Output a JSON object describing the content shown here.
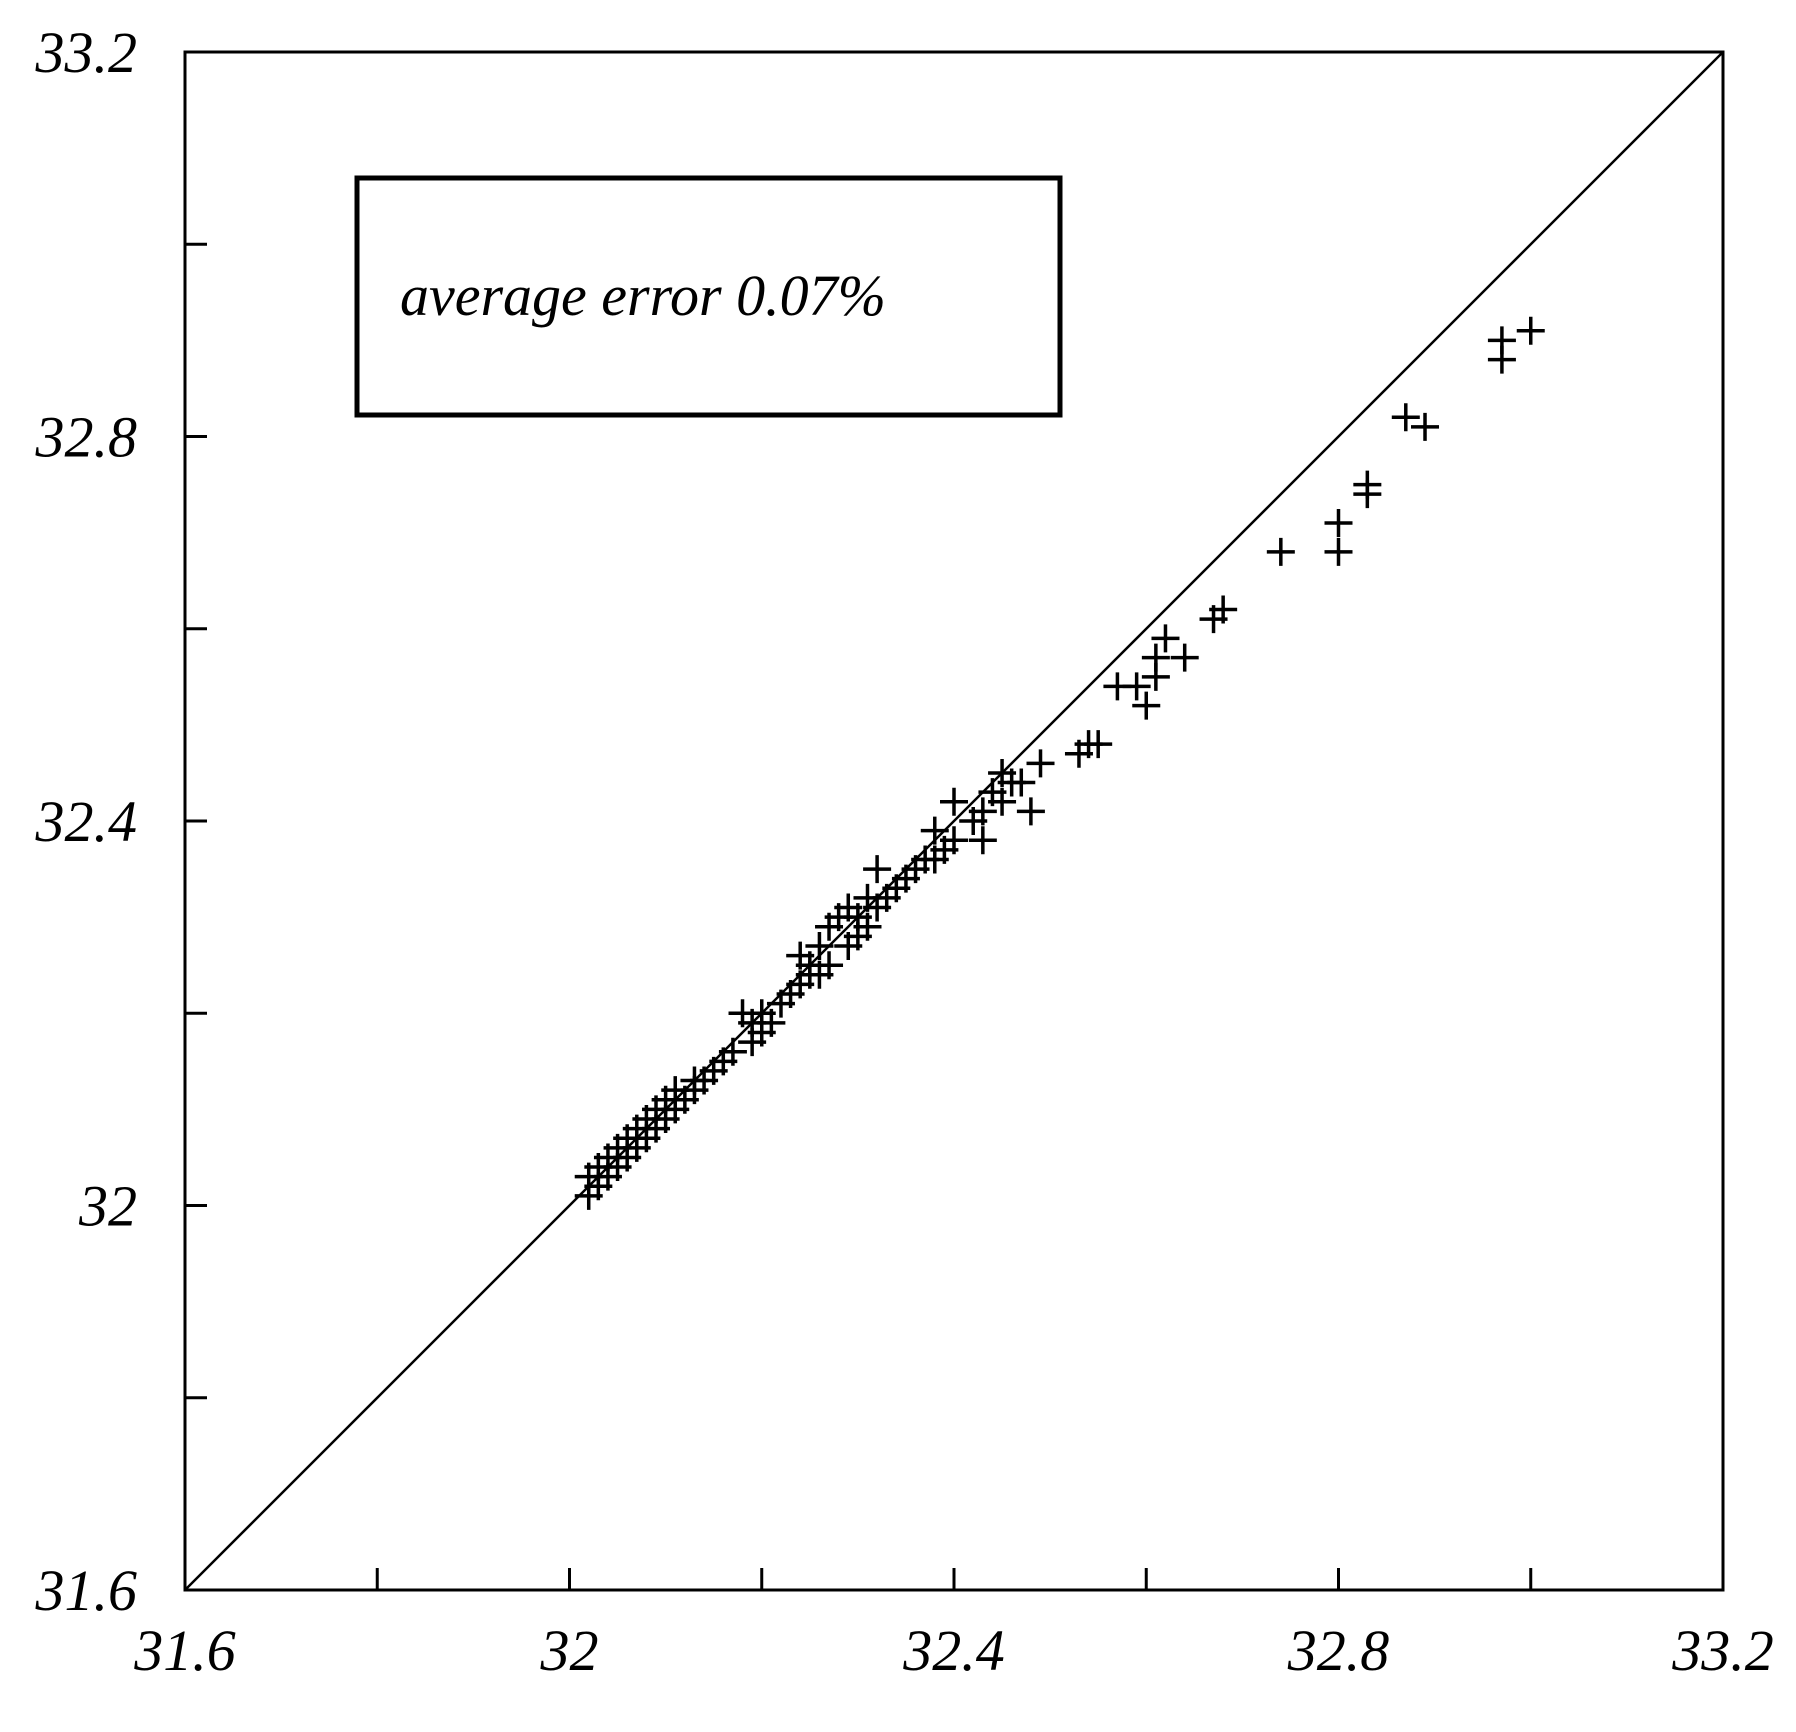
{
  "chart_data": {
    "type": "scatter",
    "title": "",
    "xlabel": "",
    "ylabel": "",
    "xlim": [
      31.6,
      33.2
    ],
    "ylim": [
      31.6,
      33.2
    ],
    "x_ticks": [
      31.6,
      32,
      32.4,
      32.8,
      33.2
    ],
    "x_tick_labels": [
      "31.6",
      "32",
      "32.4",
      "32.8",
      "33.2"
    ],
    "x_minor_ticks": [
      31.8,
      32.2,
      32.6,
      33.0
    ],
    "y_ticks": [
      31.6,
      32,
      32.4,
      32.8,
      33.2
    ],
    "y_tick_labels": [
      "31.6",
      "32",
      "32.4",
      "32.8",
      "33.2"
    ],
    "y_minor_ticks": [
      31.8,
      32.2,
      32.6,
      33.0
    ],
    "grid": false,
    "marker": "plus",
    "reference_line": {
      "type": "y=x",
      "from": [
        31.6,
        31.6
      ],
      "to": [
        33.2,
        33.2
      ]
    },
    "annotation": {
      "text": "average error 0.07%",
      "position": "top-left",
      "boxed": true
    },
    "series": [
      {
        "points": [
          [
            32.02,
            32.01
          ],
          [
            32.02,
            32.03
          ],
          [
            32.03,
            32.02
          ],
          [
            32.03,
            32.04
          ],
          [
            32.04,
            32.03
          ],
          [
            32.04,
            32.05
          ],
          [
            32.05,
            32.04
          ],
          [
            32.05,
            32.06
          ],
          [
            32.06,
            32.05
          ],
          [
            32.06,
            32.07
          ],
          [
            32.07,
            32.06
          ],
          [
            32.07,
            32.08
          ],
          [
            32.08,
            32.07
          ],
          [
            32.08,
            32.09
          ],
          [
            32.09,
            32.08
          ],
          [
            32.09,
            32.1
          ],
          [
            32.1,
            32.09
          ],
          [
            32.1,
            32.11
          ],
          [
            32.11,
            32.1
          ],
          [
            32.11,
            32.12
          ],
          [
            32.12,
            32.11
          ],
          [
            32.13,
            32.12
          ],
          [
            32.13,
            32.13
          ],
          [
            32.14,
            32.13
          ],
          [
            32.15,
            32.14
          ],
          [
            32.16,
            32.15
          ],
          [
            32.17,
            32.16
          ],
          [
            32.18,
            32.2
          ],
          [
            32.19,
            32.17
          ],
          [
            32.19,
            32.19
          ],
          [
            32.2,
            32.18
          ],
          [
            32.2,
            32.2
          ],
          [
            32.21,
            32.19
          ],
          [
            32.22,
            32.21
          ],
          [
            32.23,
            32.22
          ],
          [
            32.24,
            32.23
          ],
          [
            32.24,
            32.26
          ],
          [
            32.25,
            32.24
          ],
          [
            32.25,
            32.25
          ],
          [
            32.26,
            32.24
          ],
          [
            32.26,
            32.27
          ],
          [
            32.27,
            32.25
          ],
          [
            32.27,
            32.29
          ],
          [
            32.28,
            32.3
          ],
          [
            32.29,
            32.27
          ],
          [
            32.29,
            32.31
          ],
          [
            32.3,
            32.28
          ],
          [
            32.3,
            32.3
          ],
          [
            32.31,
            32.29
          ],
          [
            32.31,
            32.32
          ],
          [
            32.32,
            32.31
          ],
          [
            32.32,
            32.35
          ],
          [
            32.33,
            32.32
          ],
          [
            32.34,
            32.33
          ],
          [
            32.35,
            32.34
          ],
          [
            32.36,
            32.35
          ],
          [
            32.37,
            32.36
          ],
          [
            32.38,
            32.36
          ],
          [
            32.38,
            32.39
          ],
          [
            32.39,
            32.37
          ],
          [
            32.4,
            32.38
          ],
          [
            32.4,
            32.42
          ],
          [
            32.42,
            32.4
          ],
          [
            32.43,
            32.38
          ],
          [
            32.43,
            32.41
          ],
          [
            32.44,
            32.43
          ],
          [
            32.45,
            32.42
          ],
          [
            32.45,
            32.45
          ],
          [
            32.46,
            32.44
          ],
          [
            32.47,
            32.44
          ],
          [
            32.48,
            32.41
          ],
          [
            32.49,
            32.46
          ],
          [
            32.53,
            32.47
          ],
          [
            32.54,
            32.48
          ],
          [
            32.55,
            32.48
          ],
          [
            32.57,
            32.54
          ],
          [
            32.59,
            32.54
          ],
          [
            32.6,
            32.52
          ],
          [
            32.61,
            32.55
          ],
          [
            32.61,
            32.57
          ],
          [
            32.62,
            32.59
          ],
          [
            32.64,
            32.57
          ],
          [
            32.67,
            32.61
          ],
          [
            32.68,
            32.62
          ],
          [
            32.74,
            32.68
          ],
          [
            32.8,
            32.68
          ],
          [
            32.8,
            32.71
          ],
          [
            32.83,
            32.74
          ],
          [
            32.83,
            32.75
          ],
          [
            32.87,
            32.82
          ],
          [
            32.89,
            32.81
          ],
          [
            32.97,
            32.88
          ],
          [
            32.97,
            32.9
          ],
          [
            33.0,
            32.91
          ]
        ]
      }
    ]
  }
}
